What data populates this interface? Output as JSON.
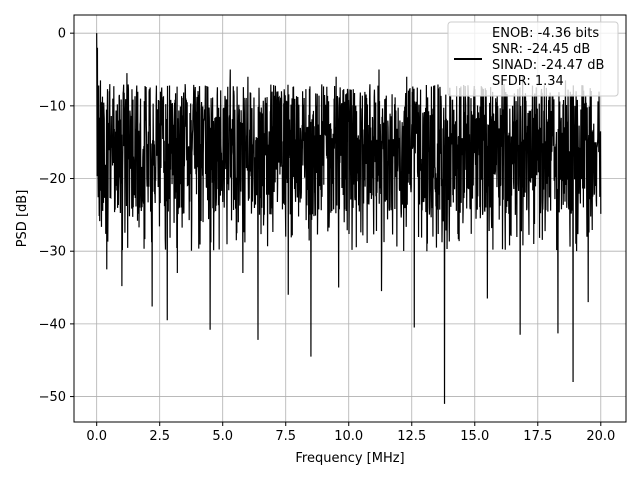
{
  "chart_data": {
    "type": "line",
    "title": "",
    "xlabel": "Frequency [MHz]",
    "ylabel": "PSD [dB]",
    "xlim": [
      -0.9,
      21.0
    ],
    "ylim": [
      -53.5,
      2.5
    ],
    "xticks": [
      0.0,
      2.5,
      5.0,
      7.5,
      10.0,
      12.5,
      15.0,
      17.5,
      20.0
    ],
    "xtick_labels": [
      "0.0",
      "2.5",
      "5.0",
      "7.5",
      "10.0",
      "12.5",
      "15.0",
      "17.5",
      "20.0"
    ],
    "yticks": [
      0,
      -10,
      -20,
      -30,
      -40,
      -50
    ],
    "ytick_labels": [
      "0",
      "−10",
      "−20",
      "−30",
      "−40",
      "−50"
    ],
    "grid": true,
    "legend": {
      "placement": "top-right",
      "lines": [
        "ENOB: -4.36 bits",
        "SNR: -24.45 dB",
        "SINAD: -24.47 dB",
        "SFDR: 1.34"
      ]
    },
    "series": [
      {
        "color": "#000000",
        "x_range": [
          0.0,
          20.0
        ],
        "envelope": {
          "band_low": -25,
          "band_high": -7,
          "floor_typical": -30
        },
        "peaks": [
          {
            "x": 0.0,
            "y": 0.0
          },
          {
            "x": 0.03,
            "y": -2.0
          },
          {
            "x": 0.08,
            "y": -4.0
          },
          {
            "x": 0.15,
            "y": -6.5
          },
          {
            "x": 0.5,
            "y": -8.0
          },
          {
            "x": 1.2,
            "y": -5.5
          },
          {
            "x": 2.8,
            "y": -6.0
          },
          {
            "x": 5.3,
            "y": -5.0
          },
          {
            "x": 6.0,
            "y": -6.0
          },
          {
            "x": 9.5,
            "y": -6.0
          },
          {
            "x": 11.2,
            "y": -5.0
          },
          {
            "x": 12.3,
            "y": -6.0
          },
          {
            "x": 16.9,
            "y": -6.0
          },
          {
            "x": 18.6,
            "y": -6.5
          }
        ],
        "dips": [
          {
            "x": 0.4,
            "y": -32.5
          },
          {
            "x": 1.0,
            "y": -34.8
          },
          {
            "x": 2.2,
            "y": -37.6
          },
          {
            "x": 2.8,
            "y": -39.5
          },
          {
            "x": 3.2,
            "y": -33.0
          },
          {
            "x": 4.5,
            "y": -40.8
          },
          {
            "x": 5.8,
            "y": -33.0
          },
          {
            "x": 6.4,
            "y": -42.2
          },
          {
            "x": 7.6,
            "y": -36.0
          },
          {
            "x": 8.5,
            "y": -44.5
          },
          {
            "x": 9.6,
            "y": -35.0
          },
          {
            "x": 11.3,
            "y": -35.5
          },
          {
            "x": 12.6,
            "y": -40.5
          },
          {
            "x": 13.8,
            "y": -51.0
          },
          {
            "x": 15.5,
            "y": -36.5
          },
          {
            "x": 16.8,
            "y": -41.5
          },
          {
            "x": 18.3,
            "y": -41.3
          },
          {
            "x": 18.9,
            "y": -48.0
          },
          {
            "x": 19.5,
            "y": -37.0
          }
        ]
      }
    ]
  }
}
